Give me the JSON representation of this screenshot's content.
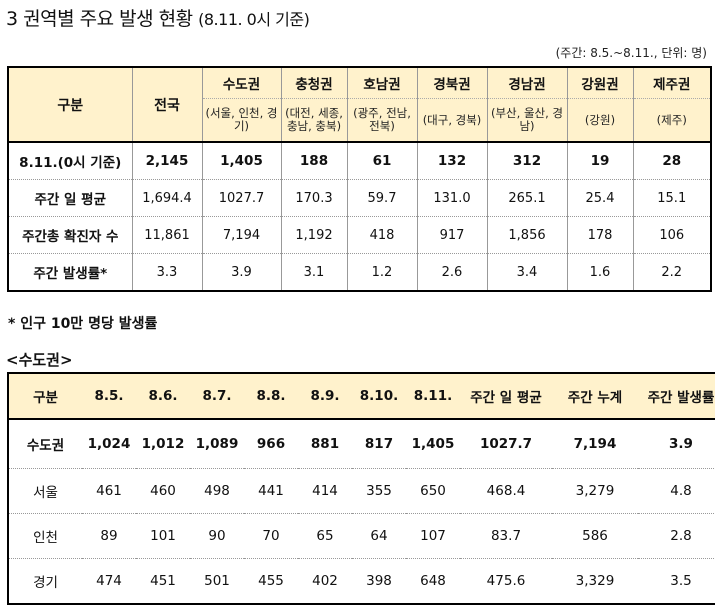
{
  "title": "3 권역별 주요 발생 현황",
  "title_sub": "(8.11. 0시 기준)",
  "unit_note": "(주간: 8.5.~8.11., 단위: 명)",
  "table1": {
    "corner": "구분",
    "total_label": "전국",
    "regions": [
      {
        "name": "수도권",
        "sub": "(서울, 인천, 경기)"
      },
      {
        "name": "충청권",
        "sub": "(대전, 세종, 충남, 충북)"
      },
      {
        "name": "호남권",
        "sub": "(광주, 전남, 전북)"
      },
      {
        "name": "경북권",
        "sub": "(대구, 경북)"
      },
      {
        "name": "경남권",
        "sub": "(부산, 울산, 경남)"
      },
      {
        "name": "강원권",
        "sub": "(강원)"
      },
      {
        "name": "제주권",
        "sub": "(제주)"
      }
    ],
    "rows": [
      {
        "label": "8.11.(0시 기준)",
        "values": [
          "2,145",
          "1,405",
          "188",
          "61",
          "132",
          "312",
          "19",
          "28"
        ]
      },
      {
        "label": "주간 일 평균",
        "values": [
          "1,694.4",
          "1027.7",
          "170.3",
          "59.7",
          "131.0",
          "265.1",
          "25.4",
          "15.1"
        ]
      },
      {
        "label": "주간총 확진자 수",
        "values": [
          "11,861",
          "7,194",
          "1,192",
          "418",
          "917",
          "1,856",
          "178",
          "106"
        ]
      },
      {
        "label": "주간 발생률*",
        "values": [
          "3.3",
          "3.9",
          "3.1",
          "1.2",
          "2.6",
          "3.4",
          "1.6",
          "2.2"
        ]
      }
    ]
  },
  "footnote": "* 인구 10만 명당 발생률",
  "section_title": "<수도권>",
  "table2": {
    "headers": [
      "구분",
      "8.5.",
      "8.6.",
      "8.7.",
      "8.8.",
      "8.9.",
      "8.10.",
      "8.11.",
      "주간 일 평균",
      "주간 누계",
      "주간 발생률"
    ],
    "rows": [
      [
        "수도권",
        "1,024",
        "1,012",
        "1,089",
        "966",
        "881",
        "817",
        "1,405",
        "1027.7",
        "7,194",
        "3.9"
      ],
      [
        "서울",
        "461",
        "460",
        "498",
        "441",
        "414",
        "355",
        "650",
        "468.4",
        "3,279",
        "4.8"
      ],
      [
        "인천",
        "89",
        "101",
        "90",
        "70",
        "65",
        "64",
        "107",
        "83.7",
        "586",
        "2.8"
      ],
      [
        "경기",
        "474",
        "451",
        "501",
        "455",
        "402",
        "398",
        "648",
        "475.6",
        "3,329",
        "3.5"
      ]
    ]
  }
}
